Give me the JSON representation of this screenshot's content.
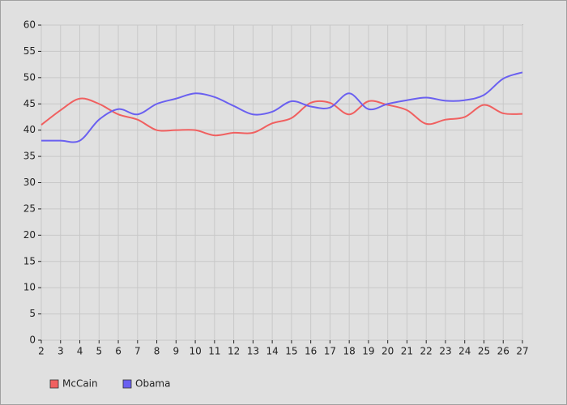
{
  "chart_data": {
    "type": "line",
    "x": [
      2,
      3,
      4,
      5,
      6,
      7,
      8,
      9,
      10,
      11,
      12,
      13,
      14,
      15,
      16,
      17,
      18,
      19,
      20,
      21,
      22,
      23,
      24,
      25,
      26,
      27
    ],
    "series": [
      {
        "name": "McCain",
        "color": "#f06060",
        "values": [
          41,
          43.8,
          46,
          45,
          43,
          42,
          40,
          40,
          40,
          39,
          39.5,
          39.5,
          41.3,
          42.3,
          45.2,
          45.2,
          43,
          45.5,
          44.8,
          43.8,
          41.2,
          42,
          42.5,
          44.8,
          43.2,
          43.1
        ]
      },
      {
        "name": "Obama",
        "color": "#6a60f0",
        "values": [
          38,
          38,
          38,
          42,
          44,
          43,
          45,
          46,
          47,
          46.3,
          44.6,
          43,
          43.5,
          45.5,
          44.5,
          44.3,
          47,
          44,
          45,
          45.7,
          46.2,
          45.6,
          45.7,
          46.7,
          49.8,
          51
        ]
      }
    ],
    "xlim": [
      2,
      27
    ],
    "xticks": [
      2,
      3,
      4,
      5,
      6,
      7,
      8,
      9,
      10,
      11,
      12,
      13,
      14,
      15,
      16,
      17,
      18,
      19,
      20,
      21,
      22,
      23,
      24,
      25,
      26,
      27
    ],
    "ylim": [
      0,
      60
    ],
    "yticks": [
      0,
      5,
      10,
      15,
      20,
      25,
      30,
      35,
      40,
      45,
      50,
      55,
      60
    ],
    "grid": true,
    "legend": "bottom-left"
  }
}
